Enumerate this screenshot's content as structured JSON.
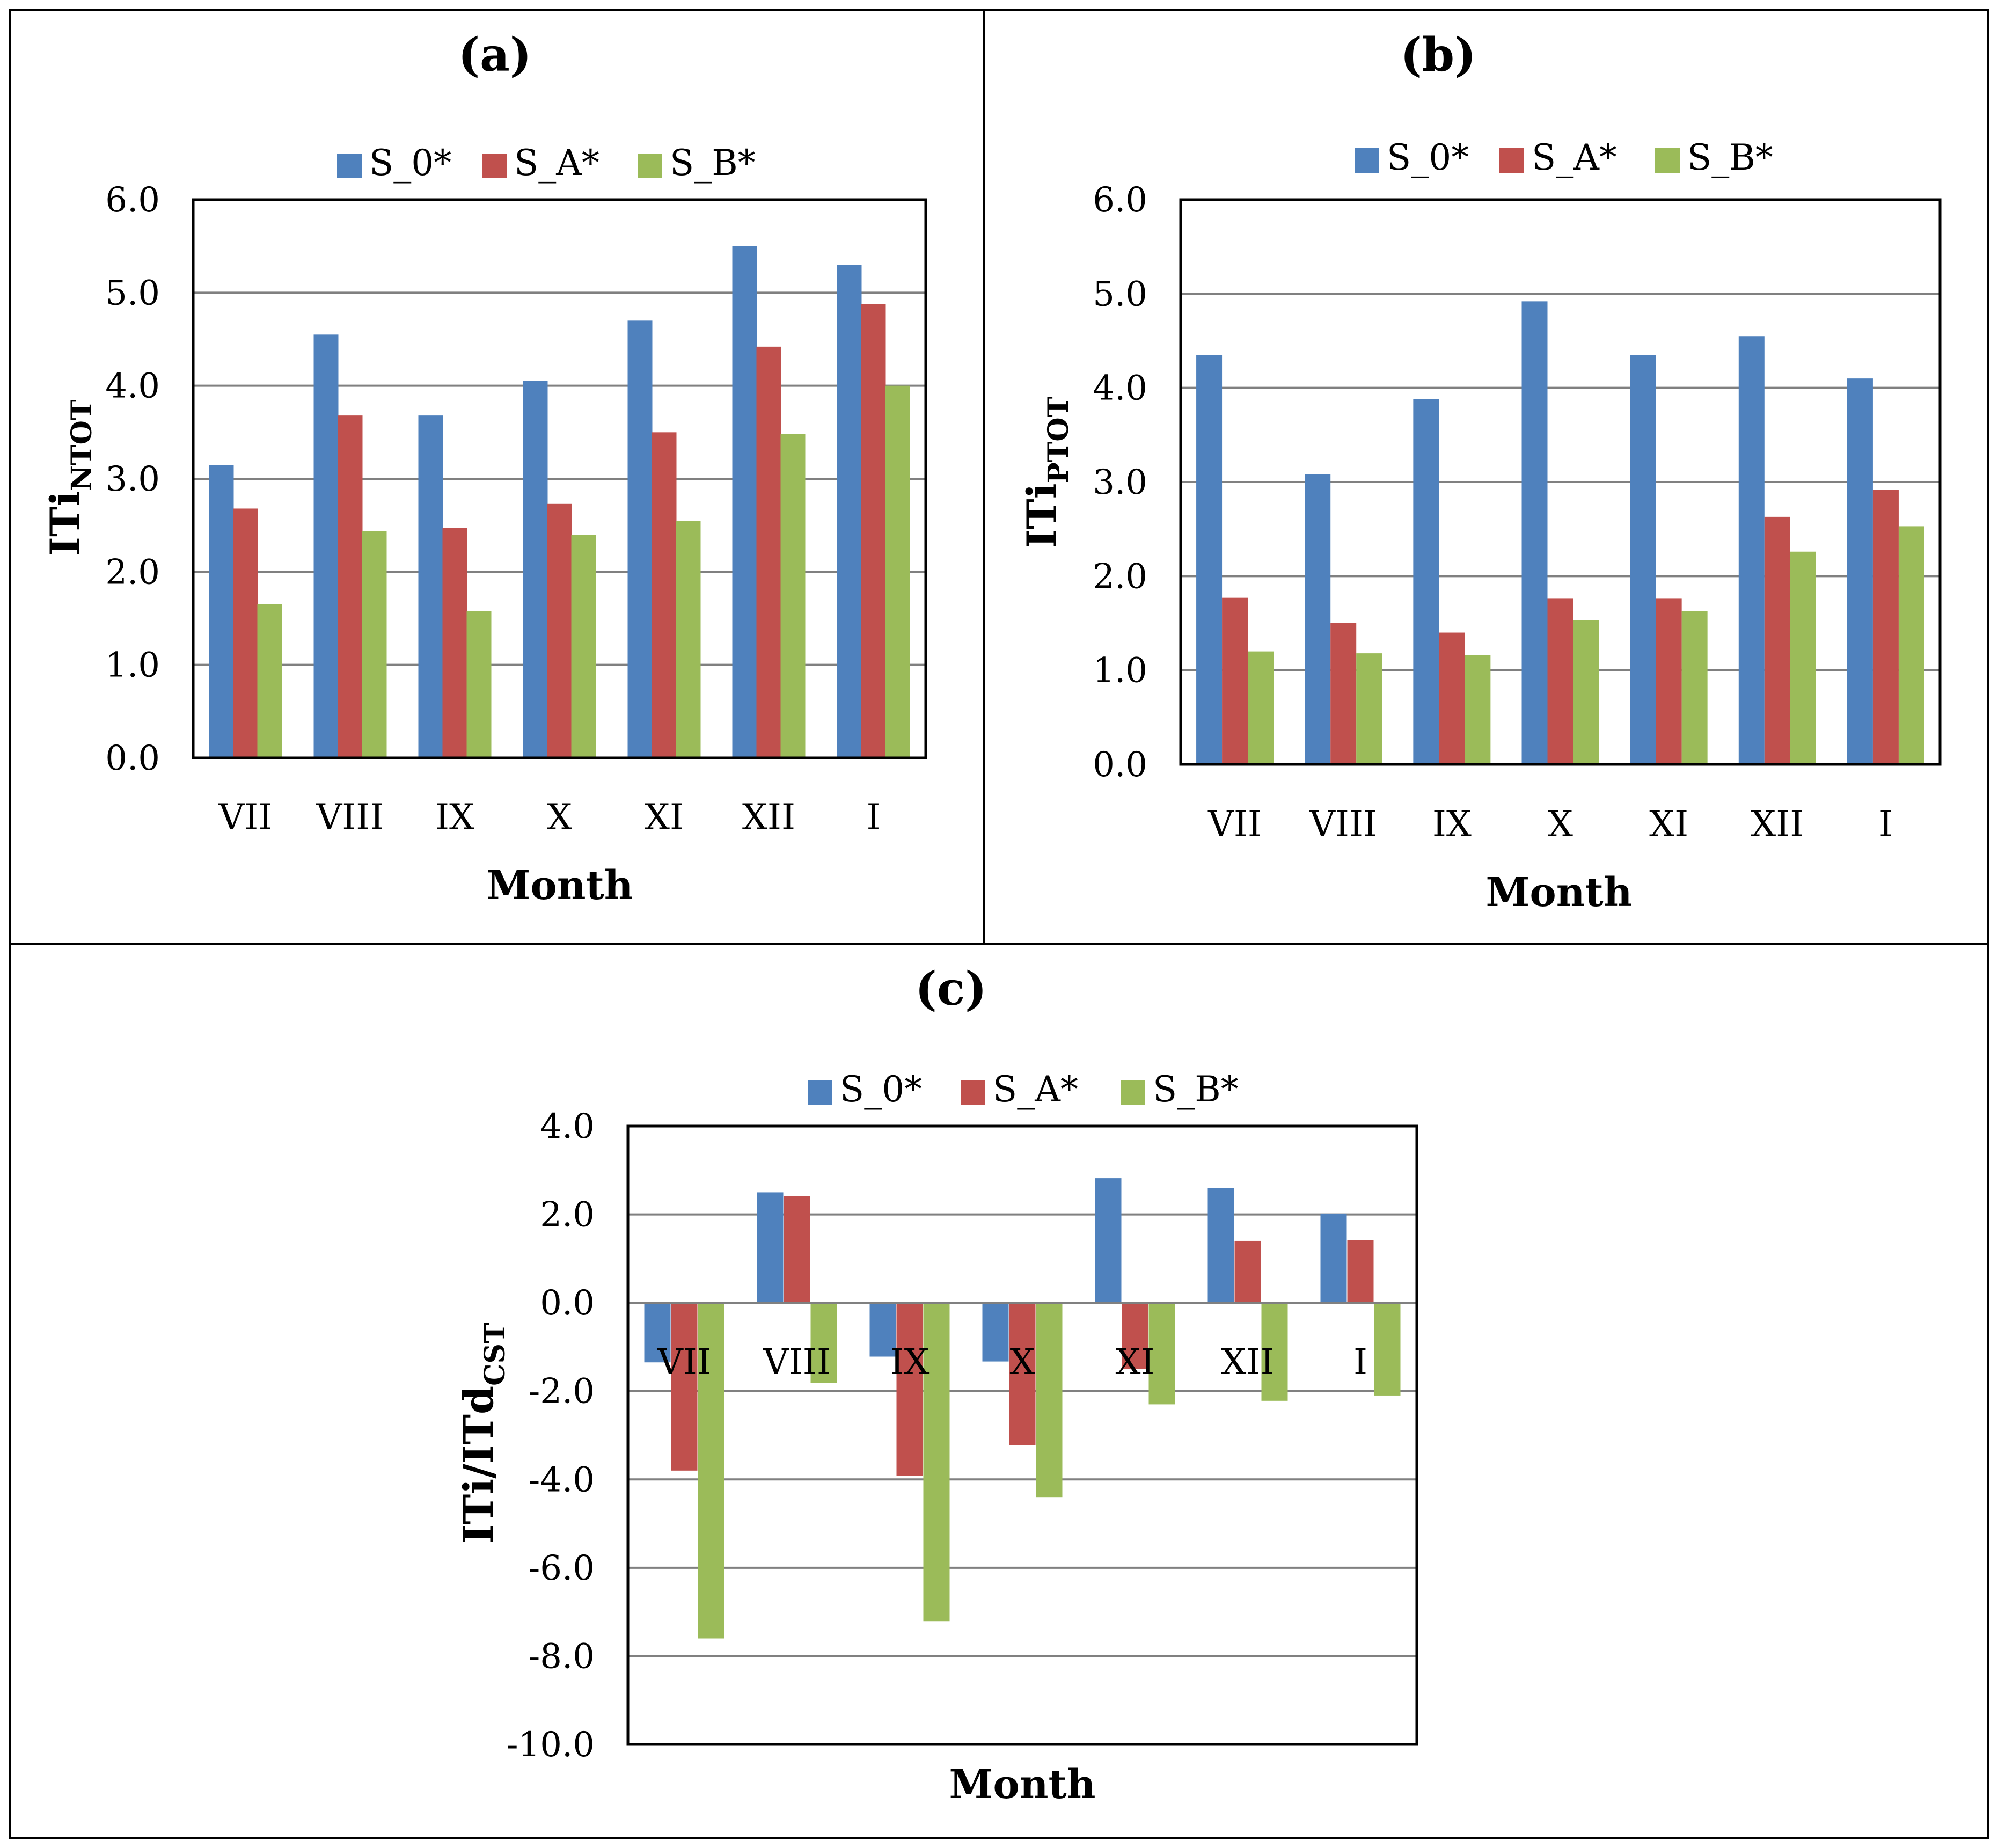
{
  "figure": {
    "series_names": [
      "S_0*",
      "S_A*",
      "S_B*"
    ],
    "colors": {
      "S_0*": "#4F81BD",
      "S_A*": "#C0504D",
      "S_B*": "#9BBB59",
      "grid": "#808080",
      "frame": "#000000"
    }
  },
  "chart_data": [
    {
      "type": "bar",
      "panel_label": "(a)",
      "title": "(a)",
      "ylabel": "ITi",
      "ylabel_sub": "NTOT",
      "xlabel": "Month",
      "categories": [
        "VII",
        "VIII",
        "IX",
        "X",
        "XI",
        "XII",
        "I"
      ],
      "series": [
        {
          "name": "S_0*",
          "values": [
            3.15,
            4.55,
            3.68,
            4.05,
            4.7,
            5.5,
            5.3
          ]
        },
        {
          "name": "S_A*",
          "values": [
            2.68,
            3.68,
            2.47,
            2.73,
            3.5,
            4.42,
            4.88
          ]
        },
        {
          "name": "S_B*",
          "values": [
            1.65,
            2.44,
            1.58,
            2.4,
            2.55,
            3.48,
            4.0
          ]
        }
      ],
      "ylim": [
        0.0,
        6.0
      ],
      "yticks": [
        "0.0",
        "1.0",
        "2.0",
        "3.0",
        "4.0",
        "5.0",
        "6.0"
      ],
      "legend": "top",
      "grid": true
    },
    {
      "type": "bar",
      "panel_label": "(b)",
      "title": "(b)",
      "ylabel": "ITi",
      "ylabel_sub": "PTOT",
      "xlabel": "Month",
      "categories": [
        "VII",
        "VIII",
        "IX",
        "X",
        "XI",
        "XII",
        "I"
      ],
      "series": [
        {
          "name": "S_0*",
          "values": [
            4.35,
            3.08,
            3.88,
            4.92,
            4.35,
            4.55,
            4.1
          ]
        },
        {
          "name": "S_A*",
          "values": [
            1.77,
            1.5,
            1.4,
            1.76,
            1.76,
            2.63,
            2.92
          ]
        },
        {
          "name": "S_B*",
          "values": [
            1.2,
            1.18,
            1.16,
            1.53,
            1.63,
            2.26,
            2.53
          ]
        }
      ],
      "ylim": [
        0.0,
        6.0
      ],
      "yticks": [
        "0.0",
        "1.0",
        "2.0",
        "3.0",
        "4.0",
        "5.0",
        "6.0"
      ],
      "legend": "top",
      "grid": true
    },
    {
      "type": "bar",
      "panel_label": "(c)",
      "title": "(c)",
      "ylabel": "ITi/ITd",
      "ylabel_sub": "CST",
      "xlabel": "Month",
      "categories": [
        "VII",
        "VIII",
        "IX",
        "X",
        "XI",
        "XII",
        "I"
      ],
      "series": [
        {
          "name": "S_0*",
          "values": [
            -1.35,
            2.5,
            -1.22,
            -1.33,
            2.82,
            2.6,
            2.02
          ]
        },
        {
          "name": "S_A*",
          "values": [
            -3.8,
            2.42,
            -3.92,
            -3.22,
            -1.5,
            1.4,
            1.42
          ]
        },
        {
          "name": "S_B*",
          "values": [
            -7.6,
            -1.82,
            -7.22,
            -4.4,
            -2.3,
            -2.22,
            -2.1
          ]
        }
      ],
      "ylim": [
        -10.0,
        4.0
      ],
      "yticks": [
        "-10.0",
        "-8.0",
        "-6.0",
        "-4.0",
        "-2.0",
        "0.0",
        "2.0",
        "4.0"
      ],
      "legend": "top",
      "grid": true
    }
  ]
}
